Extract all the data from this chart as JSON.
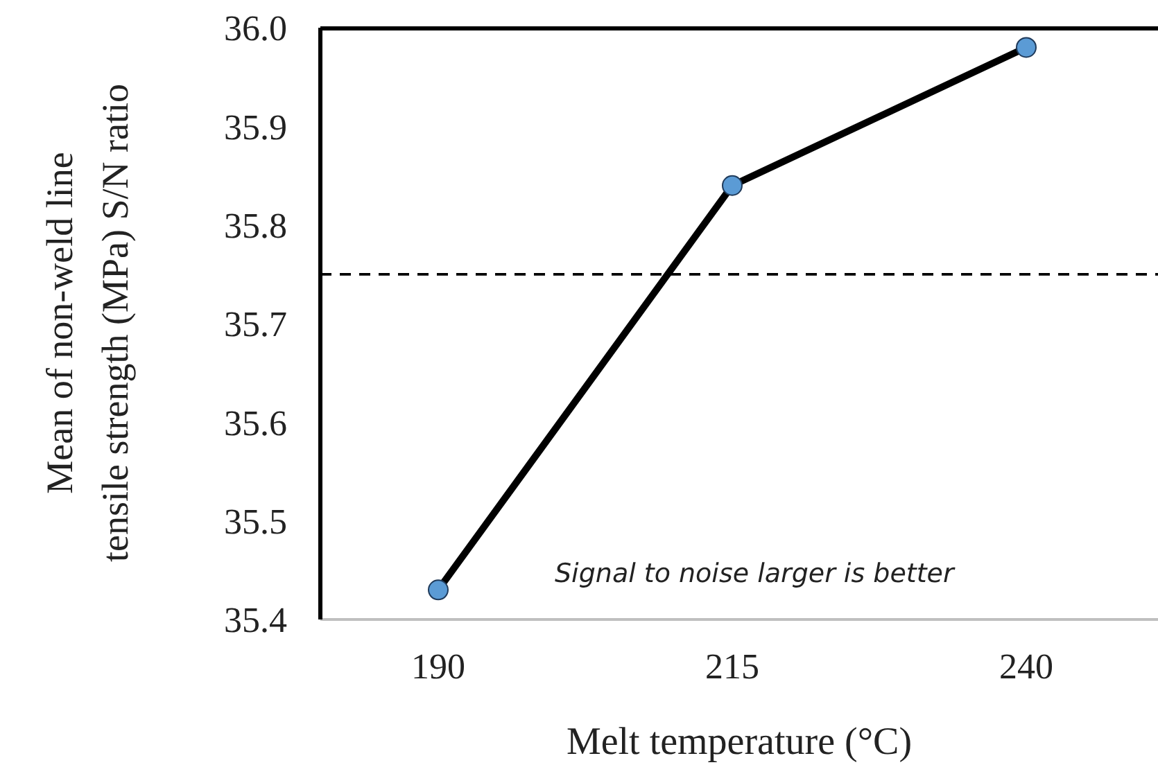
{
  "chart_data": {
    "type": "line",
    "xlabel": "Melt temperature (°C)",
    "ylabel": "Mean of non-weld line tensile strength (MPa) S/N ratio",
    "categories": [
      "190",
      "215",
      "240"
    ],
    "series": [
      {
        "color": "#000000",
        "values": [
          35.43,
          35.84,
          35.98
        ]
      }
    ],
    "ylim": [
      35.4,
      36.0
    ],
    "yticks": [
      {
        "value": 35.4,
        "label": "35.4"
      },
      {
        "value": 35.5,
        "label": "35.5"
      },
      {
        "value": 35.6,
        "label": "35.6"
      },
      {
        "value": 35.7,
        "label": "35.7"
      },
      {
        "value": 35.8,
        "label": "35.8"
      },
      {
        "value": 35.9,
        "label": "35.9"
      },
      {
        "value": 36.0,
        "label": "36.0"
      }
    ],
    "ref_lines": [
      {
        "axis": "y",
        "value": 35.75,
        "color": "#000000",
        "line_style": "dashed"
      }
    ],
    "annotations": [
      "Signal to noise larger is better"
    ],
    "marker": "circle",
    "grid": false,
    "legend": false,
    "line_style": "solid"
  }
}
